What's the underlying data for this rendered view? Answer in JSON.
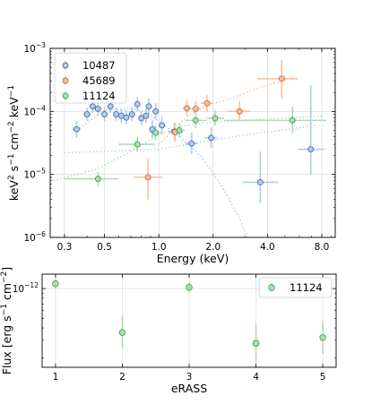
{
  "chart_data": [
    {
      "type": "scatter",
      "xlabel": "Energy (keV)",
      "ylabel_parts": [
        "keV",
        "2",
        " s",
        "−1",
        " cm",
        "−2",
        " keV",
        "−1"
      ],
      "xscale": "log",
      "yscale": "log",
      "xlim": [
        0.25,
        9.5
      ],
      "ylim": [
        1e-06,
        0.001
      ],
      "xticks": [
        0.3,
        0.5,
        1.0,
        2.0,
        4.0,
        8.0
      ],
      "xtick_labels": [
        "0.3",
        "0.5",
        "1.0",
        "2.0",
        "4.0",
        "8.0"
      ],
      "yticks": [
        {
          "value": 1e-06,
          "base": "10",
          "exp": "−6"
        },
        {
          "value": 1e-05,
          "base": "10",
          "exp": "−5"
        },
        {
          "value": 0.0001,
          "base": "10",
          "exp": "−4"
        },
        {
          "value": 0.001,
          "base": "10",
          "exp": "−3"
        }
      ],
      "grid": true,
      "legend_position": "top-left",
      "series": [
        {
          "name": "10487",
          "color": "#4a6fa5",
          "light": "#aecbf0",
          "points": [
            {
              "x": 0.35,
              "y": 5.2e-05,
              "xerr": [
                0.33,
                0.37
              ],
              "yerr": [
                3.8e-05,
                7e-05
              ]
            },
            {
              "x": 0.4,
              "y": 9e-05,
              "xerr": [
                0.38,
                0.42
              ],
              "yerr": [
                7e-05,
                0.000115
              ]
            },
            {
              "x": 0.43,
              "y": 0.00012,
              "xerr": [
                0.42,
                0.45
              ],
              "yerr": [
                9.5e-05,
                0.00015
              ]
            },
            {
              "x": 0.46,
              "y": 0.00011,
              "xerr": [
                0.45,
                0.48
              ],
              "yerr": [
                8.5e-05,
                0.00014
              ]
            },
            {
              "x": 0.5,
              "y": 9e-05,
              "xerr": [
                0.48,
                0.52
              ],
              "yerr": [
                7e-05,
                0.000115
              ]
            },
            {
              "x": 0.54,
              "y": 0.00012,
              "xerr": [
                0.52,
                0.56
              ],
              "yerr": [
                9.5e-05,
                0.00015
              ]
            },
            {
              "x": 0.58,
              "y": 9e-05,
              "xerr": [
                0.56,
                0.6
              ],
              "yerr": [
                7e-05,
                0.000115
              ]
            },
            {
              "x": 0.62,
              "y": 8.5e-05,
              "xerr": [
                0.6,
                0.64
              ],
              "yerr": [
                6.5e-05,
                0.00011
              ]
            },
            {
              "x": 0.66,
              "y": 8e-05,
              "xerr": [
                0.64,
                0.68
              ],
              "yerr": [
                6.2e-05,
                0.000105
              ]
            },
            {
              "x": 0.71,
              "y": 9e-05,
              "xerr": [
                0.69,
                0.73
              ],
              "yerr": [
                7e-05,
                0.000115
              ]
            },
            {
              "x": 0.76,
              "y": 0.00013,
              "xerr": [
                0.73,
                0.79
              ],
              "yerr": [
                0.0001,
                0.00017
              ]
            },
            {
              "x": 0.8,
              "y": 7.8e-05,
              "xerr": [
                0.78,
                0.82
              ],
              "yerr": [
                6e-05,
                0.0001
              ]
            },
            {
              "x": 0.85,
              "y": 8.5e-05,
              "xerr": [
                0.82,
                0.88
              ],
              "yerr": [
                6.5e-05,
                0.00011
              ]
            },
            {
              "x": 0.88,
              "y": 0.00012,
              "xerr": [
                0.86,
                0.9
              ],
              "yerr": [
                9e-05,
                0.00016
              ]
            },
            {
              "x": 0.92,
              "y": 5.2e-05,
              "xerr": [
                0.89,
                0.95
              ],
              "yerr": [
                3.8e-05,
                7.2e-05
              ]
            },
            {
              "x": 0.96,
              "y": 0.0001,
              "xerr": [
                0.93,
                0.99
              ],
              "yerr": [
                7.5e-05,
                0.000135
              ]
            },
            {
              "x": 1.04,
              "y": 6e-05,
              "xerr": [
                1.0,
                1.08
              ],
              "yerr": [
                4.3e-05,
                8.4e-05
              ]
            },
            {
              "x": 1.22,
              "y": 4.8e-05,
              "xerr": [
                1.15,
                1.3
              ],
              "yerr": [
                3.5e-05,
                6.6e-05
              ]
            },
            {
              "x": 1.52,
              "y": 3.1e-05,
              "xerr": [
                1.4,
                1.65
              ],
              "yerr": [
                2.1e-05,
                4.6e-05
              ]
            },
            {
              "x": 1.95,
              "y": 3.8e-05,
              "xerr": [
                1.8,
                2.1
              ],
              "yerr": [
                2.6e-05,
                5.5e-05
              ]
            },
            {
              "x": 3.65,
              "y": 7.5e-06,
              "xerr": [
                2.9,
                4.6
              ],
              "yerr": [
                3.5e-06,
                2.3e-05
              ]
            },
            {
              "x": 6.95,
              "y": 2.5e-05,
              "xerr": [
                5.9,
                8.3
              ],
              "yerr": [
                1e-05,
                0.00026
              ]
            }
          ],
          "model": [
            [
              0.35,
              5e-05
            ],
            [
              0.5,
              0.000105
            ],
            [
              0.7,
              0.00011
            ],
            [
              0.85,
              0.0001
            ],
            [
              1.0,
              7e-05
            ],
            [
              1.3,
              4e-05
            ],
            [
              1.7,
              2e-05
            ],
            [
              2.2,
              7e-06
            ],
            [
              2.8,
              2e-06
            ],
            [
              3.1,
              1e-06
            ]
          ],
          "model2": [
            [
              0.3,
              2.2e-05
            ],
            [
              1.0,
              2.5e-05
            ],
            [
              2.0,
              3.5e-05
            ],
            [
              3.5,
              4.5e-05
            ],
            [
              5.5,
              5.3e-05
            ],
            [
              7.5,
              6e-05
            ]
          ]
        },
        {
          "name": "45689",
          "color": "#c07040",
          "light": "#f5c19a",
          "points": [
            {
              "x": 0.87,
              "y": 9e-06,
              "xerr": [
                0.72,
                1.05
              ],
              "yerr": [
                4e-06,
                1.8e-05
              ]
            },
            {
              "x": 1.23,
              "y": 4.7e-05,
              "xerr": [
                1.12,
                1.35
              ],
              "yerr": [
                3.3e-05,
                6.6e-05
              ]
            },
            {
              "x": 1.43,
              "y": 0.000112,
              "xerr": [
                1.35,
                1.52
              ],
              "yerr": [
                8.5e-05,
                0.00015
              ]
            },
            {
              "x": 1.6,
              "y": 0.00011,
              "xerr": [
                1.52,
                1.7
              ],
              "yerr": [
                8e-05,
                0.000145
              ]
            },
            {
              "x": 1.85,
              "y": 0.000135,
              "xerr": [
                1.7,
                2.0
              ],
              "yerr": [
                0.0001,
                0.00018
              ]
            },
            {
              "x": 2.8,
              "y": 0.0001,
              "xerr": [
                2.4,
                3.2
              ],
              "yerr": [
                7e-05,
                0.000145
              ]
            },
            {
              "x": 4.8,
              "y": 0.00033,
              "xerr": [
                3.5,
                5.9
              ],
              "yerr": [
                0.00016,
                0.00065
              ]
            }
          ],
          "model": [
            [
              1.0,
              3e-05
            ],
            [
              1.2,
              5e-05
            ],
            [
              1.45,
              8.5e-05
            ],
            [
              1.8,
              0.00012
            ],
            [
              2.5,
              0.00016
            ],
            [
              3.5,
              0.00023
            ],
            [
              5.0,
              0.00032
            ],
            [
              5.6,
              0.00035
            ]
          ]
        },
        {
          "name": "11124",
          "color": "#4c9a55",
          "light": "#a9e1ae",
          "points": [
            {
              "x": 0.46,
              "y": 8.5e-06,
              "xerr": [
                0.3,
                0.6
              ],
              "yerr": [
                6.5e-06,
                1.1e-05
              ]
            },
            {
              "x": 0.76,
              "y": 3e-05,
              "xerr": [
                0.6,
                0.95
              ],
              "yerr": [
                2.3e-05,
                4e-05
              ]
            },
            {
              "x": 0.96,
              "y": 4.6e-05,
              "xerr": [
                0.9,
                1.05
              ],
              "yerr": [
                3.5e-05,
                6e-05
              ]
            },
            {
              "x": 1.3,
              "y": 5e-05,
              "xerr": [
                1.18,
                1.4
              ],
              "yerr": [
                3.8e-05,
                6.5e-05
              ]
            },
            {
              "x": 1.6,
              "y": 7.2e-05,
              "xerr": [
                1.4,
                1.85
              ],
              "yerr": [
                5.5e-05,
                9.5e-05
              ]
            },
            {
              "x": 2.05,
              "y": 7.8e-05,
              "xerr": [
                1.85,
                2.3
              ],
              "yerr": [
                6e-05,
                0.000105
              ]
            },
            {
              "x": 5.5,
              "y": 7.2e-05,
              "xerr": [
                2.3,
                8.5
              ],
              "yerr": [
                4.5e-05,
                0.00012
              ]
            }
          ],
          "model": [
            [
              0.26,
              8e-06
            ],
            [
              0.45,
              1.2e-05
            ],
            [
              0.7,
              2.3e-05
            ],
            [
              1.0,
              4.3e-05
            ],
            [
              1.4,
              6e-05
            ],
            [
              2.0,
              6.8e-05
            ],
            [
              4.0,
              7.6e-05
            ],
            [
              8.0,
              8.4e-05
            ]
          ]
        }
      ]
    },
    {
      "type": "scatter",
      "xlabel": "eRASS",
      "ylabel_parts": [
        "Flux [erg s",
        "−1",
        " cm",
        "−2",
        "]"
      ],
      "yscale": "log",
      "xlim": [
        0.8,
        5.2
      ],
      "ylim": [
        1.6e-13,
        1.4e-12
      ],
      "xticks": [
        1,
        2,
        3,
        4,
        5
      ],
      "xtick_labels": [
        "1",
        "2",
        "3",
        "4",
        "5"
      ],
      "yticks": [
        {
          "value": 1e-12,
          "base": "10",
          "exp": "−12"
        }
      ],
      "grid": true,
      "legend_position": "top-right",
      "series": [
        {
          "name": "11124",
          "color": "#4c9a55",
          "light": "#a9e1ae",
          "points": [
            {
              "x": 1,
              "y": 1.12e-12,
              "yerr": [
                1e-12,
                1.25e-12
              ]
            },
            {
              "x": 2,
              "y": 3.6e-13,
              "yerr": [
                2.5e-13,
                5.2e-13
              ]
            },
            {
              "x": 3,
              "y": 1.03e-12,
              "yerr": [
                9e-13,
                1.17e-12
              ]
            },
            {
              "x": 4,
              "y": 2.8e-13,
              "yerr": [
                1.8e-13,
                4.3e-13
              ]
            },
            {
              "x": 5,
              "y": 3.2e-13,
              "yerr": [
                2.2e-13,
                4.7e-13
              ]
            }
          ]
        }
      ]
    }
  ]
}
